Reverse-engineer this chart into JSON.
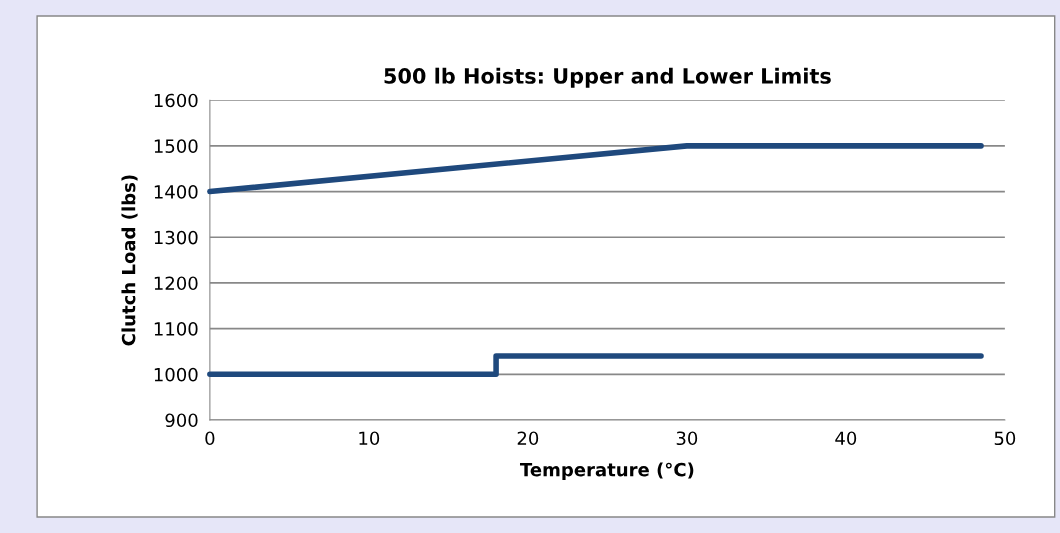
{
  "chart_data": {
    "type": "line",
    "title": "500 lb Hoists: Upper and Lower Limits",
    "xlabel": "Temperature (°C)",
    "ylabel": "Clutch Load (lbs)",
    "series": [
      {
        "color": "#1f497d",
        "x": [
          0,
          30,
          48.5
        ],
        "values": [
          1400,
          1500,
          1500
        ]
      },
      {
        "color": "#1f497d",
        "x": [
          0,
          18,
          18,
          48.5
        ],
        "values": [
          1000,
          1000,
          1040,
          1040
        ]
      }
    ],
    "xlim": [
      0,
      50
    ],
    "xticks": [
      0,
      10,
      20,
      30,
      40,
      50
    ],
    "ylim": [
      900,
      1600
    ],
    "yticks": [
      900,
      1000,
      1100,
      1200,
      1300,
      1400,
      1500,
      1600
    ],
    "grid": "y",
    "marker": "none",
    "line_style": "solid"
  }
}
